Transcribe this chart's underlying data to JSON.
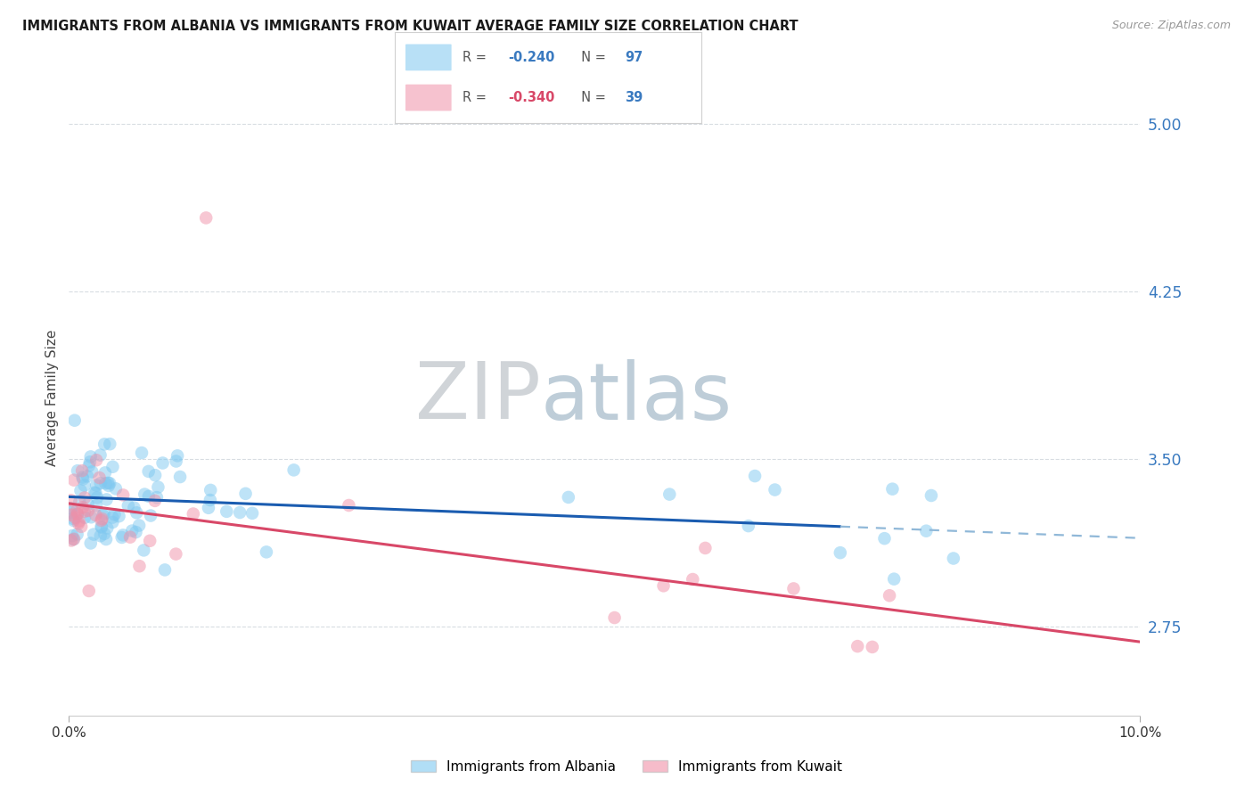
{
  "title": "IMMIGRANTS FROM ALBANIA VS IMMIGRANTS FROM KUWAIT AVERAGE FAMILY SIZE CORRELATION CHART",
  "source": "Source: ZipAtlas.com",
  "ylabel": "Average Family Size",
  "yticks": [
    2.75,
    3.5,
    4.25,
    5.0
  ],
  "ymin": 2.35,
  "ymax": 5.2,
  "xmin": 0.0,
  "xmax": 10.0,
  "albania_R": -0.24,
  "albania_N": 97,
  "kuwait_R": -0.34,
  "kuwait_N": 39,
  "albania_scatter_color": "#7EC8F0",
  "kuwait_scatter_color": "#F090A8",
  "albania_line_color": "#1A5CB0",
  "albania_dash_color": "#90B8D8",
  "kuwait_line_color": "#D84868",
  "tick_color": "#3A7AC0",
  "watermark_zip": "ZIP",
  "watermark_atlas": "atlas",
  "watermark_color_zip": "#C8D4DC",
  "watermark_color_atlas": "#A8C0D4",
  "background_color": "#FFFFFF",
  "grid_color": "#D8DDE2",
  "title_fontsize": 10.5,
  "source_fontsize": 9,
  "ylabel_fontsize": 11,
  "legend_r_blue": "#3A7AC0",
  "legend_r_pink": "#D84868",
  "legend_n_blue": "#3A7AC0"
}
